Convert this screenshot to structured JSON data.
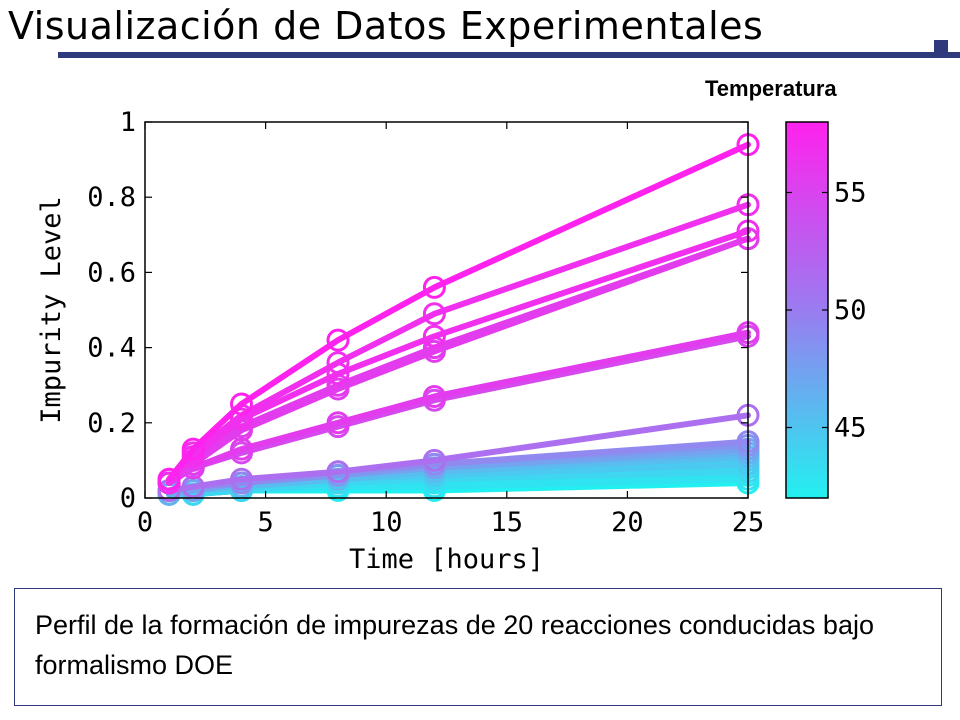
{
  "slide": {
    "title": "Visualización de Datos Experimentales",
    "caption": "Perfil de la formación de impurezas de 20 reacciones conducidas bajo formalismo DOE"
  },
  "colors": {
    "title_rule": "#2e3a7c",
    "colormap_low": "#22f0f0",
    "colormap_high": "#ff22ee"
  },
  "chart_data": {
    "type": "line",
    "xlabel": "Time [hours]",
    "ylabel": "Impurity Level",
    "xlim": [
      0,
      25
    ],
    "ylim": [
      0,
      1
    ],
    "xticks": [
      "0",
      "5",
      "10",
      "15",
      "20",
      "25"
    ],
    "yticks": [
      "0",
      "0.2",
      "0.4",
      "0.6",
      "0.8",
      "1"
    ],
    "marker": "circle",
    "grid": false,
    "colorbar": {
      "title": "Temperatura",
      "range": [
        42,
        58
      ],
      "ticks": [
        "45",
        "50",
        "55"
      ]
    },
    "series": [
      {
        "temp": 58,
        "x": [
          1,
          2,
          4,
          8,
          12,
          25
        ],
        "y": [
          0.05,
          0.13,
          0.25,
          0.42,
          0.56,
          0.94
        ]
      },
      {
        "temp": 57,
        "x": [
          1,
          2,
          4,
          8,
          12,
          25
        ],
        "y": [
          0.04,
          0.12,
          0.22,
          0.36,
          0.49,
          0.78
        ]
      },
      {
        "temp": 57,
        "x": [
          1,
          2,
          4,
          8,
          12,
          25
        ],
        "y": [
          0.05,
          0.11,
          0.21,
          0.33,
          0.43,
          0.71
        ]
      },
      {
        "temp": 56,
        "x": [
          1,
          2,
          4,
          8,
          12,
          25
        ],
        "y": [
          0.04,
          0.1,
          0.19,
          0.3,
          0.4,
          0.69
        ]
      },
      {
        "temp": 56,
        "x": [
          1,
          2,
          4,
          8,
          12,
          25
        ],
        "y": [
          0.04,
          0.09,
          0.18,
          0.29,
          0.39,
          0.69
        ]
      },
      {
        "temp": 56,
        "x": [
          1,
          2,
          4,
          8,
          12,
          25
        ],
        "y": [
          0.04,
          0.08,
          0.13,
          0.2,
          0.27,
          0.44
        ]
      },
      {
        "temp": 55,
        "x": [
          1,
          2,
          4,
          8,
          12,
          25
        ],
        "y": [
          0.04,
          0.08,
          0.12,
          0.19,
          0.26,
          0.43
        ]
      },
      {
        "temp": 52,
        "x": [
          1,
          2,
          4,
          8,
          12,
          25
        ],
        "y": [
          0.02,
          0.03,
          0.05,
          0.07,
          0.1,
          0.22
        ]
      },
      {
        "temp": 50,
        "x": [
          1,
          2,
          4,
          8,
          12,
          25
        ],
        "y": [
          0.02,
          0.03,
          0.04,
          0.07,
          0.09,
          0.15
        ]
      },
      {
        "temp": 49,
        "x": [
          1,
          2,
          4,
          8,
          12,
          25
        ],
        "y": [
          0.02,
          0.03,
          0.04,
          0.06,
          0.09,
          0.14
        ]
      },
      {
        "temp": 48,
        "x": [
          1,
          2,
          4,
          8,
          12,
          25
        ],
        "y": [
          0.02,
          0.02,
          0.04,
          0.06,
          0.08,
          0.13
        ]
      },
      {
        "temp": 47,
        "x": [
          1,
          2,
          4,
          8,
          12,
          25
        ],
        "y": [
          0.01,
          0.02,
          0.04,
          0.06,
          0.08,
          0.12
        ]
      },
      {
        "temp": 46,
        "x": [
          1,
          2,
          4,
          8,
          12,
          25
        ],
        "y": [
          0.01,
          0.02,
          0.03,
          0.05,
          0.07,
          0.11
        ]
      },
      {
        "temp": 45,
        "x": [
          1,
          2,
          4,
          8,
          12,
          25
        ],
        "y": [
          0.01,
          0.02,
          0.03,
          0.05,
          0.07,
          0.1
        ]
      },
      {
        "temp": 45,
        "x": [
          1,
          2,
          4,
          8,
          12,
          25
        ],
        "y": [
          0.01,
          0.02,
          0.03,
          0.05,
          0.06,
          0.09
        ]
      },
      {
        "temp": 44,
        "x": [
          1,
          2,
          4,
          8,
          12,
          25
        ],
        "y": [
          0.01,
          0.02,
          0.03,
          0.04,
          0.05,
          0.08
        ]
      },
      {
        "temp": 44,
        "x": [
          1,
          2,
          4,
          8,
          12,
          25
        ],
        "y": [
          0.01,
          0.01,
          0.02,
          0.04,
          0.05,
          0.07
        ]
      },
      {
        "temp": 43,
        "x": [
          1,
          2,
          4,
          8,
          12,
          25
        ],
        "y": [
          0.01,
          0.01,
          0.02,
          0.03,
          0.04,
          0.06
        ]
      },
      {
        "temp": 43,
        "x": [
          1,
          2,
          4,
          8,
          12,
          25
        ],
        "y": [
          0.01,
          0.01,
          0.02,
          0.03,
          0.03,
          0.05
        ]
      },
      {
        "temp": 42,
        "x": [
          1,
          2,
          4,
          8,
          12,
          25
        ],
        "y": [
          0.01,
          0.01,
          0.02,
          0.02,
          0.02,
          0.04
        ]
      }
    ]
  }
}
